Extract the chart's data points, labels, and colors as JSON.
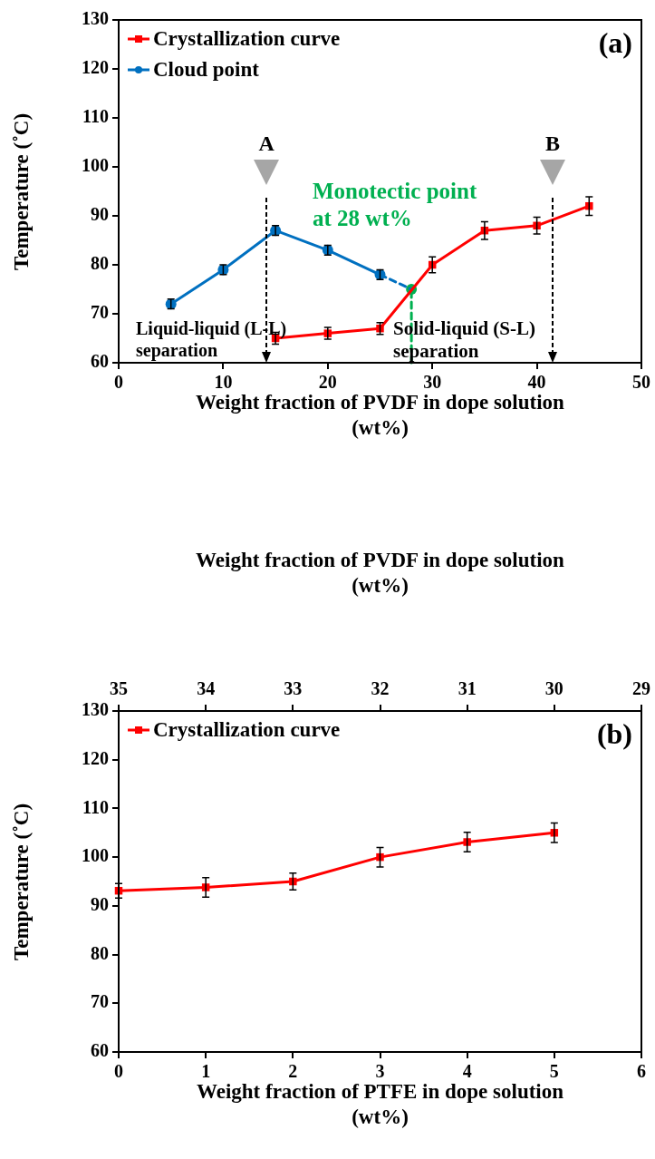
{
  "chart_data": [
    {
      "type": "line",
      "xlabel": "Weight fraction of PVDF in dope solution (wt%)",
      "ylabel": "Temperature (˚C)",
      "xlim": [
        0,
        50
      ],
      "xticks": [
        0,
        10,
        20,
        30,
        40,
        50
      ],
      "ylim": [
        60,
        130
      ],
      "yticks": [
        60,
        70,
        80,
        90,
        100,
        110,
        120,
        130
      ],
      "grid": false,
      "legend": "top left",
      "series": [
        {
          "name": "Crystallization curve",
          "color": "#ff0000",
          "marker": "square",
          "x": [
            15,
            20,
            25,
            30,
            35,
            40,
            45
          ],
          "values": [
            65,
            66,
            67,
            80,
            87,
            88,
            92
          ],
          "errors": [
            1.2,
            1.2,
            1.2,
            1.6,
            1.8,
            1.7,
            1.9
          ]
        },
        {
          "name": "Cloud point",
          "color": "#0070c0",
          "marker": "circle",
          "x": [
            5,
            10,
            15,
            20,
            25
          ],
          "values": [
            72,
            79,
            87,
            83,
            78
          ],
          "errors": [
            1,
            1,
            1,
            1,
            1
          ]
        },
        {
          "type": "line",
          "color": "#0070c0",
          "line_style": "dashed",
          "x": [
            25,
            28
          ],
          "values": [
            78,
            75
          ]
        },
        {
          "type": "line",
          "color": "#00b050",
          "line_style": "dashed",
          "x": [
            28,
            28
          ],
          "values": [
            60,
            75
          ]
        },
        {
          "type": "scatter",
          "color": "#00b050",
          "marker": "circle",
          "x": [
            28
          ],
          "values": [
            75
          ]
        }
      ],
      "annotations": [
        "(a)",
        "A",
        "B",
        "Monotectic point at 28 wt%",
        "Liquid-liquid (L-L) separation",
        "Solid-liquid (S-L) separation"
      ]
    },
    {
      "type": "line",
      "xlabel": "Weight fraction of PTFE in dope solution (wt%)",
      "ylabel": "Temperature (˚C)",
      "x2label": "Weight fraction of PVDF in dope solution (wt%)",
      "xlim": [
        0,
        6
      ],
      "xticks": [
        0,
        1,
        2,
        3,
        4,
        5,
        6
      ],
      "x2lim": [
        35,
        29
      ],
      "x2ticks": [
        35,
        34,
        33,
        32,
        31,
        30,
        29
      ],
      "ylim": [
        60,
        130
      ],
      "yticks": [
        60,
        70,
        80,
        90,
        100,
        110,
        120,
        130
      ],
      "grid": false,
      "legend": "top left",
      "series": [
        {
          "name": "Crystallization curve",
          "color": "#ff0000",
          "marker": "square",
          "x": [
            0,
            1,
            2,
            3,
            4,
            5
          ],
          "values": [
            93.1,
            93.8,
            95,
            100,
            103.1,
            105
          ],
          "errors": [
            1.5,
            2,
            1.7,
            2,
            2,
            2
          ]
        }
      ],
      "annotations": [
        "(b)"
      ]
    }
  ]
}
